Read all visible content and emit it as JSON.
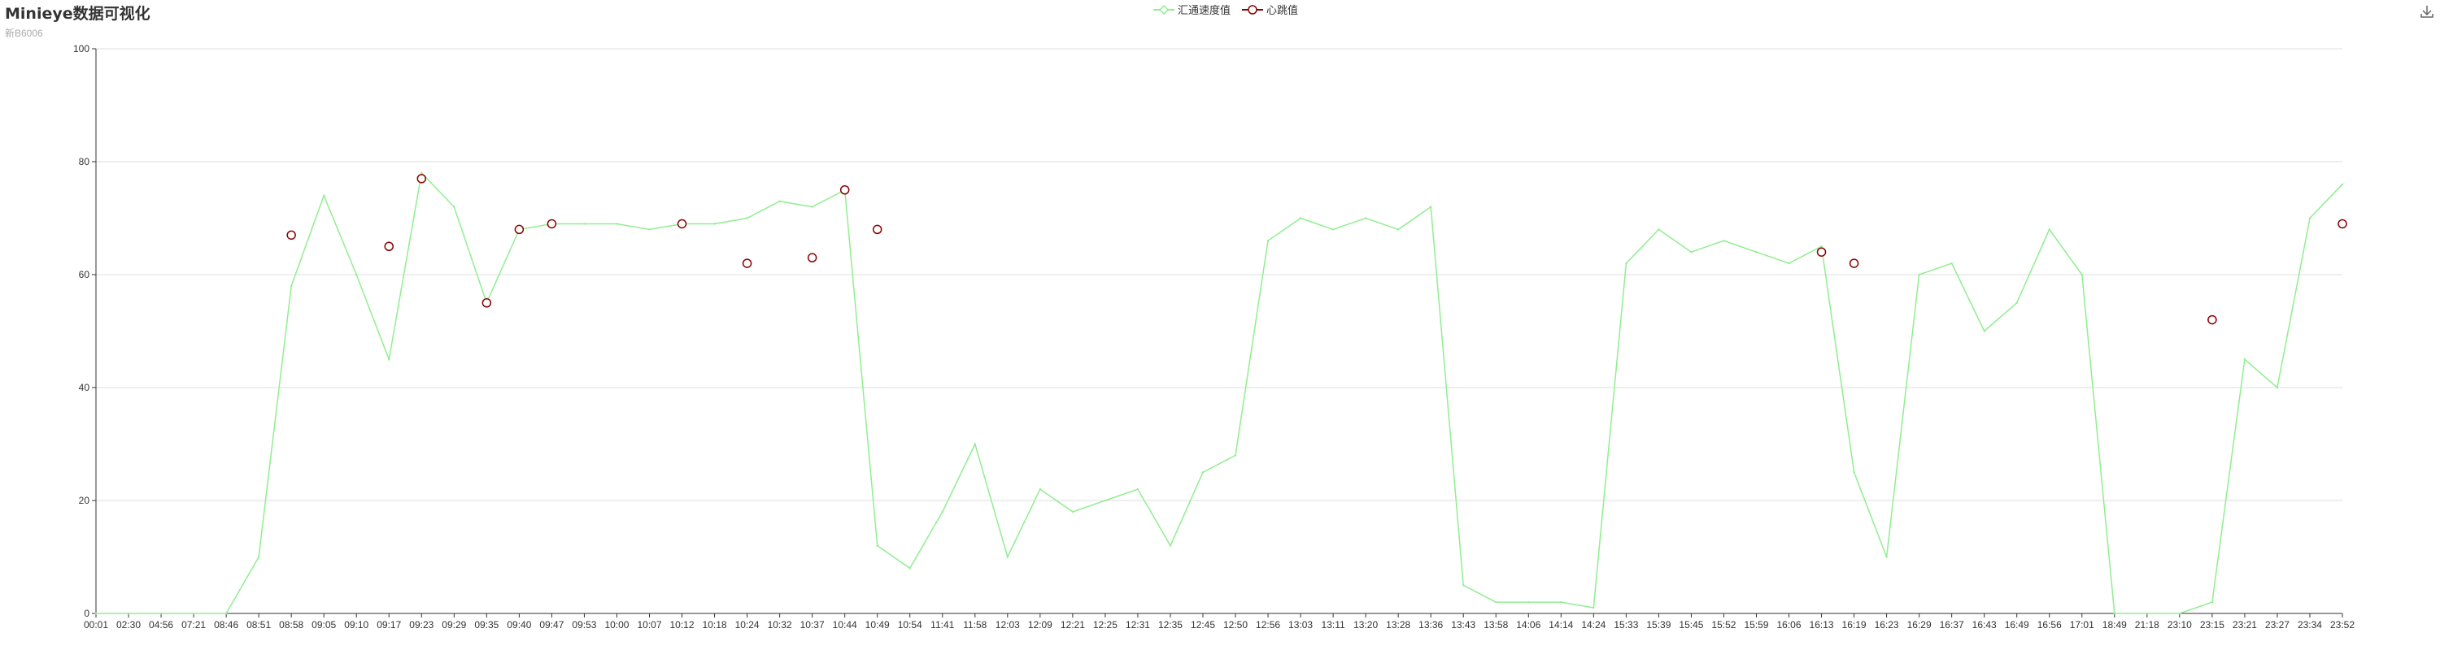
{
  "chart_data": {
    "type": "line",
    "title": "Minieye数据可视化",
    "subtitle": "新B6006",
    "ylim": [
      0,
      100
    ],
    "yticks": [
      0,
      20,
      40,
      60,
      80,
      100
    ],
    "grid": true,
    "legend_position": "top-center",
    "x": [
      "00:01",
      "02:30",
      "04:56",
      "07:21",
      "08:46",
      "08:51",
      "08:58",
      "09:05",
      "09:10",
      "09:17",
      "09:23",
      "09:29",
      "09:35",
      "09:40",
      "09:47",
      "09:53",
      "10:00",
      "10:07",
      "10:12",
      "10:18",
      "10:24",
      "10:32",
      "10:37",
      "10:44",
      "10:49",
      "10:54",
      "11:41",
      "11:58",
      "12:03",
      "12:09",
      "12:21",
      "12:25",
      "12:31",
      "12:35",
      "12:45",
      "12:50",
      "12:56",
      "13:03",
      "13:11",
      "13:20",
      "13:28",
      "13:36",
      "13:43",
      "13:58",
      "14:06",
      "14:14",
      "14:24",
      "15:33",
      "15:39",
      "15:45",
      "15:52",
      "15:59",
      "16:06",
      "16:13",
      "16:19",
      "16:23",
      "16:29",
      "16:37",
      "16:43",
      "16:49",
      "16:56",
      "17:01",
      "18:49",
      "21:18",
      "23:10",
      "23:15",
      "23:21",
      "23:27",
      "23:34",
      "23:52"
    ],
    "series": [
      {
        "name": "汇通速度值",
        "color": "#90ee90",
        "values": [
          0,
          0,
          0,
          0,
          0,
          10,
          58,
          74,
          60,
          45,
          78,
          72,
          55,
          68,
          69,
          69,
          69,
          68,
          69,
          69,
          70,
          73,
          72,
          75,
          12,
          8,
          18,
          30,
          10,
          22,
          18,
          20,
          22,
          12,
          25,
          28,
          66,
          70,
          68,
          70,
          68,
          72,
          5,
          2,
          2,
          2,
          1,
          62,
          68,
          64,
          66,
          64,
          62,
          65,
          25,
          10,
          60,
          62,
          50,
          55,
          68,
          60,
          0,
          0,
          0,
          2,
          45,
          40,
          70,
          76
        ]
      },
      {
        "name": "心跳值",
        "color": "#8b0000",
        "points": [
          {
            "x": "08:58",
            "y": 67
          },
          {
            "x": "09:17",
            "y": 65
          },
          {
            "x": "09:23",
            "y": 77
          },
          {
            "x": "09:35",
            "y": 55
          },
          {
            "x": "09:40",
            "y": 68
          },
          {
            "x": "09:47",
            "y": 69
          },
          {
            "x": "10:12",
            "y": 69
          },
          {
            "x": "10:24",
            "y": 62
          },
          {
            "x": "10:37",
            "y": 63
          },
          {
            "x": "10:44",
            "y": 75
          },
          {
            "x": "10:49",
            "y": 68
          },
          {
            "x": "16:13",
            "y": 64
          },
          {
            "x": "16:19",
            "y": 62
          },
          {
            "x": "23:15",
            "y": 52
          },
          {
            "x": "23:52",
            "y": 69
          }
        ]
      }
    ]
  },
  "toolbar": {
    "download_icon": "download-icon"
  }
}
